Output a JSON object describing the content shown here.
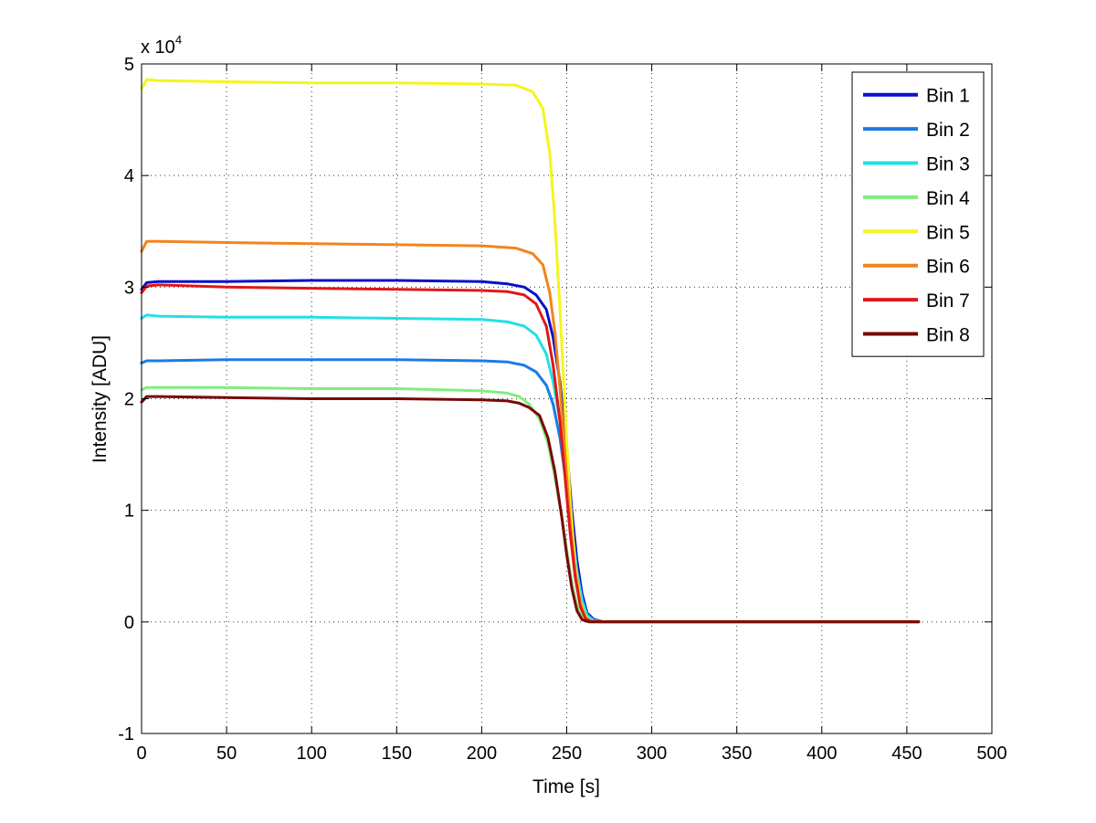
{
  "chart_data": {
    "type": "line",
    "title": "",
    "xlabel": "Time [s]",
    "ylabel": "Intensity [ADU]",
    "y_exponent_label": "x 10",
    "y_exponent_power": "4",
    "xlim": [
      0,
      500
    ],
    "ylim": [
      -1,
      5
    ],
    "x_ticks": [
      0,
      50,
      100,
      150,
      200,
      250,
      300,
      350,
      400,
      450,
      500
    ],
    "y_ticks": [
      -1,
      0,
      1,
      2,
      3,
      4,
      5
    ],
    "grid": true,
    "legend_position": "top-right",
    "series": [
      {
        "name": "Bin 1",
        "color": "#0a10c8",
        "x": [
          0,
          3,
          10,
          50,
          100,
          150,
          200,
          215,
          225,
          232,
          238,
          242,
          246,
          250,
          253,
          256,
          259,
          262,
          266,
          272,
          300,
          350,
          400,
          457
        ],
        "y": [
          2.98,
          3.04,
          3.05,
          3.05,
          3.06,
          3.06,
          3.05,
          3.03,
          3.0,
          2.93,
          2.8,
          2.55,
          2.15,
          1.55,
          1.0,
          0.55,
          0.25,
          0.08,
          0.02,
          0.0,
          0.0,
          0.0,
          0.0,
          0.0
        ]
      },
      {
        "name": "Bin 2",
        "color": "#1a7be6",
        "x": [
          0,
          3,
          10,
          50,
          100,
          150,
          200,
          215,
          225,
          232,
          238,
          242,
          246,
          250,
          253,
          256,
          259,
          262,
          266,
          272,
          300,
          350,
          400,
          457
        ],
        "y": [
          2.32,
          2.34,
          2.34,
          2.35,
          2.35,
          2.35,
          2.34,
          2.33,
          2.3,
          2.24,
          2.12,
          1.95,
          1.65,
          1.2,
          0.8,
          0.45,
          0.2,
          0.06,
          0.01,
          0.0,
          0.0,
          0.0,
          0.0,
          0.0
        ]
      },
      {
        "name": "Bin 3",
        "color": "#22e0e6",
        "x": [
          0,
          3,
          10,
          50,
          100,
          150,
          200,
          215,
          225,
          232,
          238,
          242,
          246,
          250,
          253,
          256,
          259,
          262,
          266,
          272,
          300,
          350,
          400,
          457
        ],
        "y": [
          2.72,
          2.75,
          2.74,
          2.73,
          2.73,
          2.72,
          2.71,
          2.69,
          2.65,
          2.57,
          2.4,
          2.15,
          1.8,
          1.3,
          0.85,
          0.45,
          0.2,
          0.06,
          0.01,
          0.0,
          0.0,
          0.0,
          0.0,
          0.0
        ]
      },
      {
        "name": "Bin 4",
        "color": "#80ee80",
        "x": [
          0,
          3,
          10,
          50,
          100,
          150,
          200,
          215,
          222,
          228,
          234,
          239,
          243,
          247,
          250,
          253,
          256,
          259,
          263,
          270,
          300,
          350,
          400,
          457
        ],
        "y": [
          2.08,
          2.1,
          2.1,
          2.1,
          2.09,
          2.09,
          2.07,
          2.05,
          2.02,
          1.95,
          1.82,
          1.6,
          1.3,
          0.95,
          0.65,
          0.35,
          0.15,
          0.05,
          0.01,
          0.0,
          0.0,
          0.0,
          0.0,
          0.0
        ]
      },
      {
        "name": "Bin 5",
        "color": "#f5f51e",
        "x": [
          0,
          3,
          10,
          50,
          100,
          150,
          200,
          220,
          230,
          236,
          240,
          243,
          246,
          249,
          252,
          255,
          258,
          261,
          264,
          270,
          300,
          350,
          400,
          457
        ],
        "y": [
          4.78,
          4.86,
          4.85,
          4.84,
          4.83,
          4.83,
          4.82,
          4.81,
          4.75,
          4.6,
          4.2,
          3.6,
          2.8,
          1.9,
          1.1,
          0.5,
          0.18,
          0.05,
          0.01,
          0.0,
          0.0,
          0.0,
          0.0,
          0.0
        ]
      },
      {
        "name": "Bin 6",
        "color": "#f2841e",
        "x": [
          0,
          3,
          10,
          50,
          100,
          150,
          200,
          220,
          230,
          236,
          240,
          243,
          246,
          249,
          252,
          255,
          258,
          261,
          264,
          270,
          300,
          350,
          400,
          457
        ],
        "y": [
          3.32,
          3.41,
          3.41,
          3.4,
          3.39,
          3.38,
          3.37,
          3.35,
          3.3,
          3.2,
          2.95,
          2.6,
          2.1,
          1.5,
          0.9,
          0.45,
          0.16,
          0.04,
          0.01,
          0.0,
          0.0,
          0.0,
          0.0,
          0.0
        ]
      },
      {
        "name": "Bin 7",
        "color": "#e01818",
        "x": [
          0,
          3,
          10,
          50,
          100,
          150,
          200,
          215,
          225,
          232,
          238,
          242,
          246,
          249,
          252,
          255,
          258,
          261,
          264,
          270,
          300,
          350,
          400,
          457
        ],
        "y": [
          2.95,
          3.01,
          3.02,
          3.0,
          2.99,
          2.98,
          2.97,
          2.96,
          2.93,
          2.85,
          2.65,
          2.3,
          1.8,
          1.3,
          0.8,
          0.4,
          0.14,
          0.03,
          0.0,
          0.0,
          0.0,
          0.0,
          0.0,
          0.0
        ]
      },
      {
        "name": "Bin 8",
        "color": "#780808",
        "x": [
          0,
          3,
          10,
          50,
          100,
          150,
          200,
          215,
          222,
          228,
          234,
          239,
          243,
          247,
          250,
          253,
          256,
          259,
          263,
          270,
          300,
          350,
          400,
          457
        ],
        "y": [
          1.97,
          2.02,
          2.02,
          2.01,
          2.0,
          2.0,
          1.99,
          1.98,
          1.96,
          1.92,
          1.85,
          1.65,
          1.35,
          0.95,
          0.6,
          0.3,
          0.1,
          0.02,
          0.0,
          0.0,
          0.0,
          0.0,
          0.0,
          0.0
        ]
      }
    ]
  }
}
